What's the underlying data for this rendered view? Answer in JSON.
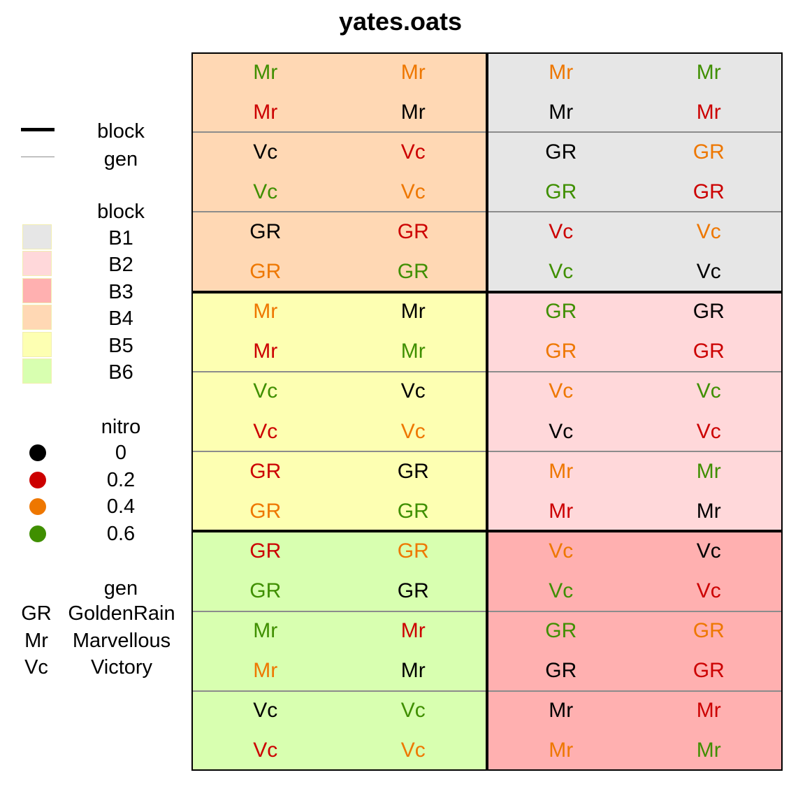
{
  "title": "yates.oats",
  "legend": {
    "lines_title": [
      {
        "label": "block"
      },
      {
        "label": "gen"
      }
    ],
    "block_title": "block",
    "blocks": [
      {
        "label": "B1",
        "color": "#e6e6e6"
      },
      {
        "label": "B2",
        "color": "#ffd8da"
      },
      {
        "label": "B3",
        "color": "#ffb0b0"
      },
      {
        "label": "B4",
        "color": "#ffd8b4"
      },
      {
        "label": "B5",
        "color": "#fdffb2"
      },
      {
        "label": "B6",
        "color": "#d8ffb0"
      }
    ],
    "nitro_title": "nitro",
    "nitro": [
      {
        "label": "0",
        "color": "#000000"
      },
      {
        "label": "0.2",
        "color": "#cc0000"
      },
      {
        "label": "0.4",
        "color": "#ee7700"
      },
      {
        "label": "0.6",
        "color": "#3f8f00"
      }
    ],
    "gen_title": "gen",
    "gen": [
      {
        "code": "GR",
        "name": "GoldenRain"
      },
      {
        "code": "Mr",
        "name": "Marvellous"
      },
      {
        "code": "Vc",
        "name": "Victory"
      }
    ]
  },
  "nitro_colors": {
    "0": "#000000",
    "0.2": "#cc0000",
    "0.4": "#ee7700",
    "0.6": "#3f8f00"
  },
  "block_colors": {
    "B1": "#e6e6e6",
    "B2": "#ffd8da",
    "B3": "#ffb0b0",
    "B4": "#ffd8b4",
    "B5": "#fdffb2",
    "B6": "#d8ffb0"
  },
  "layout": {
    "rows": 18,
    "cols": 4
  },
  "block_grid": [
    [
      "B4",
      "B1"
    ],
    [
      "B5",
      "B2"
    ],
    [
      "B6",
      "B3"
    ]
  ],
  "plots": [
    [
      [
        "Mr",
        "0.6"
      ],
      [
        "Mr",
        "0.4"
      ],
      [
        "Mr",
        "0.4"
      ],
      [
        "Mr",
        "0.6"
      ]
    ],
    [
      [
        "Mr",
        "0.2"
      ],
      [
        "Mr",
        "0"
      ],
      [
        "Mr",
        "0"
      ],
      [
        "Mr",
        "0.2"
      ]
    ],
    [
      [
        "Vc",
        "0"
      ],
      [
        "Vc",
        "0.2"
      ],
      [
        "GR",
        "0"
      ],
      [
        "GR",
        "0.4"
      ]
    ],
    [
      [
        "Vc",
        "0.6"
      ],
      [
        "Vc",
        "0.4"
      ],
      [
        "GR",
        "0.6"
      ],
      [
        "GR",
        "0.2"
      ]
    ],
    [
      [
        "GR",
        "0"
      ],
      [
        "GR",
        "0.2"
      ],
      [
        "Vc",
        "0.2"
      ],
      [
        "Vc",
        "0.4"
      ]
    ],
    [
      [
        "GR",
        "0.4"
      ],
      [
        "GR",
        "0.6"
      ],
      [
        "Vc",
        "0.6"
      ],
      [
        "Vc",
        "0"
      ]
    ],
    [
      [
        "Mr",
        "0.4"
      ],
      [
        "Mr",
        "0"
      ],
      [
        "GR",
        "0.6"
      ],
      [
        "GR",
        "0"
      ]
    ],
    [
      [
        "Mr",
        "0.2"
      ],
      [
        "Mr",
        "0.6"
      ],
      [
        "GR",
        "0.4"
      ],
      [
        "GR",
        "0.2"
      ]
    ],
    [
      [
        "Vc",
        "0.6"
      ],
      [
        "Vc",
        "0"
      ],
      [
        "Vc",
        "0.4"
      ],
      [
        "Vc",
        "0.6"
      ]
    ],
    [
      [
        "Vc",
        "0.2"
      ],
      [
        "Vc",
        "0.4"
      ],
      [
        "Vc",
        "0"
      ],
      [
        "Vc",
        "0.2"
      ]
    ],
    [
      [
        "GR",
        "0.2"
      ],
      [
        "GR",
        "0"
      ],
      [
        "Mr",
        "0.4"
      ],
      [
        "Mr",
        "0.6"
      ]
    ],
    [
      [
        "GR",
        "0.4"
      ],
      [
        "GR",
        "0.6"
      ],
      [
        "Mr",
        "0.2"
      ],
      [
        "Mr",
        "0"
      ]
    ],
    [
      [
        "GR",
        "0.2"
      ],
      [
        "GR",
        "0.4"
      ],
      [
        "Vc",
        "0.4"
      ],
      [
        "Vc",
        "0"
      ]
    ],
    [
      [
        "GR",
        "0.6"
      ],
      [
        "GR",
        "0"
      ],
      [
        "Vc",
        "0.6"
      ],
      [
        "Vc",
        "0.2"
      ]
    ],
    [
      [
        "Mr",
        "0.6"
      ],
      [
        "Mr",
        "0.2"
      ],
      [
        "GR",
        "0.6"
      ],
      [
        "GR",
        "0.4"
      ]
    ],
    [
      [
        "Mr",
        "0.4"
      ],
      [
        "Mr",
        "0"
      ],
      [
        "GR",
        "0"
      ],
      [
        "GR",
        "0.2"
      ]
    ],
    [
      [
        "Vc",
        "0"
      ],
      [
        "Vc",
        "0.6"
      ],
      [
        "Mr",
        "0"
      ],
      [
        "Mr",
        "0.2"
      ]
    ],
    [
      [
        "Vc",
        "0.2"
      ],
      [
        "Vc",
        "0.4"
      ],
      [
        "Mr",
        "0.4"
      ],
      [
        "Mr",
        "0.6"
      ]
    ]
  ]
}
